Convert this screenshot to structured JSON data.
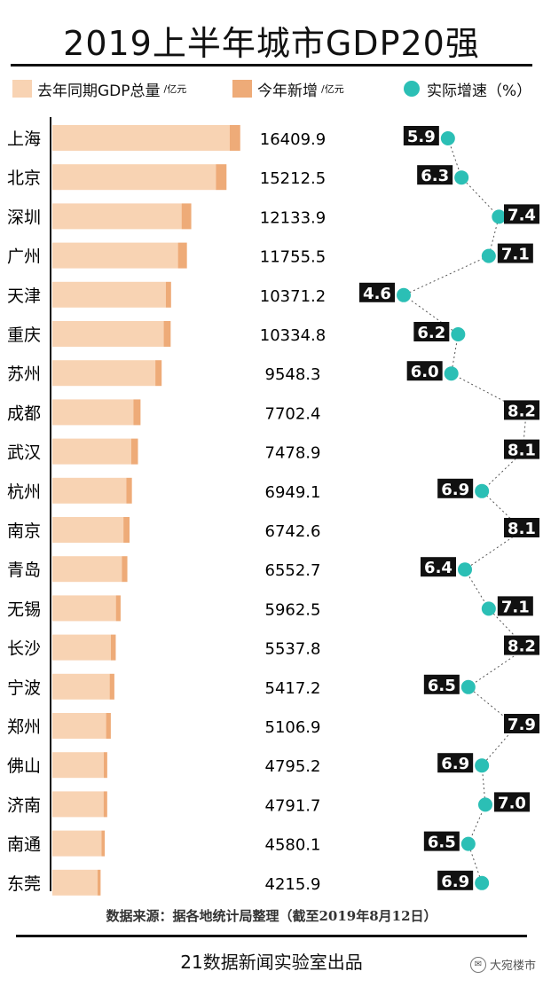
{
  "title": "2019上半年城市GDP20强",
  "legend": {
    "base_label": "去年同期GDP总量",
    "base_unit": "/亿元",
    "new_label": "今年新增",
    "new_unit": "/亿元",
    "speed_label": "实际增速（%）"
  },
  "colors": {
    "base": "#f8d3b3",
    "increase": "#eeab78",
    "dot": "#2bbfb5",
    "label_bg": "#111111"
  },
  "footer": {
    "source": "数据来源：据各地统计局整理（截至2019年8月12日）",
    "producer": "21数据新闻实验室出品",
    "watermark": "大宛楼市"
  },
  "chart_data": {
    "type": "bar",
    "categories": [
      "上海",
      "北京",
      "深圳",
      "广州",
      "天津",
      "重庆",
      "苏州",
      "成都",
      "武汉",
      "杭州",
      "南京",
      "青岛",
      "无锡",
      "长沙",
      "宁波",
      "郑州",
      "佛山",
      "济南",
      "南通",
      "东莞"
    ],
    "series": [
      {
        "name": "去年同期GDP总量",
        "values": [
          15495,
          14285,
          11288,
          10975,
          9910,
          9730,
          8997,
          7080,
          6891,
          6469,
          6210,
          6071,
          5553,
          5112,
          5009,
          4695,
          4485,
          4475,
          4301,
          3945
        ]
      },
      {
        "name": "今年新增",
        "values": [
          914.9,
          927.5,
          845.9,
          780.5,
          461.2,
          604.8,
          551.3,
          622.4,
          587.9,
          480.1,
          532.6,
          481.7,
          409.5,
          425.8,
          408.2,
          411.9,
          310.2,
          316.7,
          279.1,
          270.9
        ]
      },
      {
        "name": "实际增速（%）",
        "values": [
          5.9,
          6.3,
          7.4,
          7.1,
          4.6,
          6.2,
          6.0,
          8.2,
          8.1,
          6.9,
          8.1,
          6.4,
          7.1,
          8.2,
          6.5,
          7.9,
          6.9,
          7.0,
          6.5,
          6.9
        ]
      }
    ],
    "totals": [
      "16409.9",
      "15212.5",
      "12133.9",
      "11755.5",
      "10371.2",
      "10334.8",
      "9548.3",
      "7702.4",
      "7478.9",
      "6949.1",
      "6742.6",
      "6552.7",
      "5962.5",
      "5537.8",
      "5417.2",
      "5106.9",
      "4795.2",
      "4791.7",
      "4580.1",
      "4215.9"
    ],
    "speed_range": [
      4.6,
      8.2
    ]
  }
}
